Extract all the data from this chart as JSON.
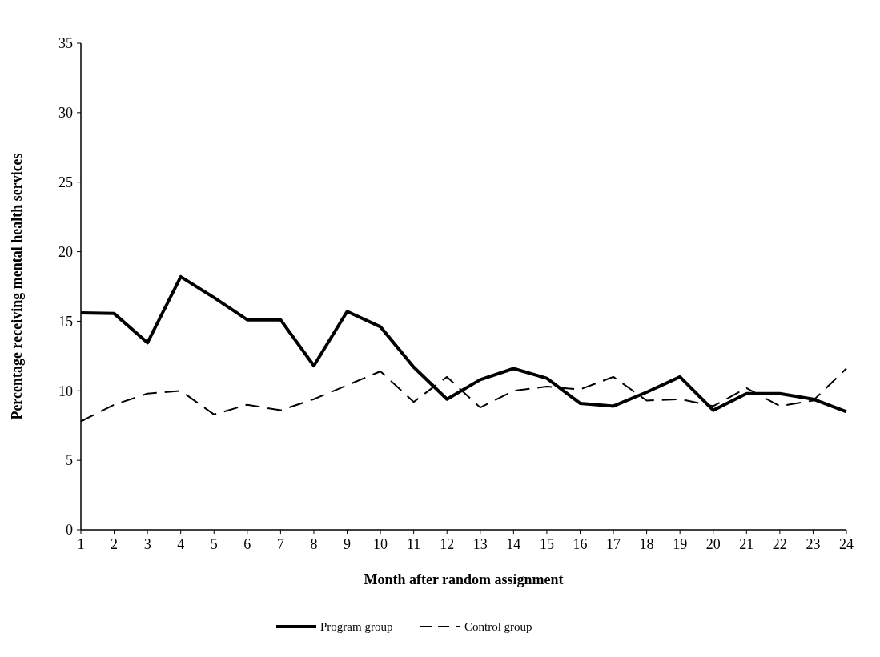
{
  "chart_data": {
    "type": "line",
    "xlabel": "Month after random assignment",
    "ylabel": "Percentage receiving mental health services",
    "x": [
      1,
      2,
      3,
      4,
      5,
      6,
      7,
      8,
      9,
      10,
      11,
      12,
      13,
      14,
      15,
      16,
      17,
      18,
      19,
      20,
      21,
      22,
      23,
      24
    ],
    "xlim": [
      1,
      24
    ],
    "xticks": [
      1,
      2,
      3,
      4,
      5,
      6,
      7,
      8,
      9,
      10,
      11,
      12,
      13,
      14,
      15,
      16,
      17,
      18,
      19,
      20,
      21,
      22,
      23,
      24
    ],
    "ylim": [
      0,
      35
    ],
    "yticks": [
      0,
      5,
      10,
      15,
      20,
      25,
      30,
      35
    ],
    "grid": false,
    "legend": "bottom",
    "marker": "none",
    "series": [
      {
        "name": "Program group",
        "color": "#000000",
        "line_style": "solid",
        "values": [
          15.6,
          15.55,
          13.45,
          18.2,
          16.7,
          15.1,
          15.1,
          11.8,
          15.7,
          14.6,
          11.7,
          9.4,
          10.8,
          11.6,
          10.9,
          9.1,
          8.9,
          9.9,
          11.0,
          8.6,
          9.8,
          9.8,
          9.4,
          8.5
        ]
      },
      {
        "name": "Control group",
        "color": "#000000",
        "line_style": "dashed",
        "values": [
          7.8,
          9.0,
          9.8,
          10.0,
          8.3,
          9.0,
          8.6,
          9.4,
          10.4,
          11.4,
          9.2,
          11.0,
          8.8,
          10.0,
          10.3,
          10.1,
          11.0,
          9.3,
          9.4,
          8.9,
          10.2,
          8.9,
          9.3,
          11.6
        ]
      }
    ]
  }
}
